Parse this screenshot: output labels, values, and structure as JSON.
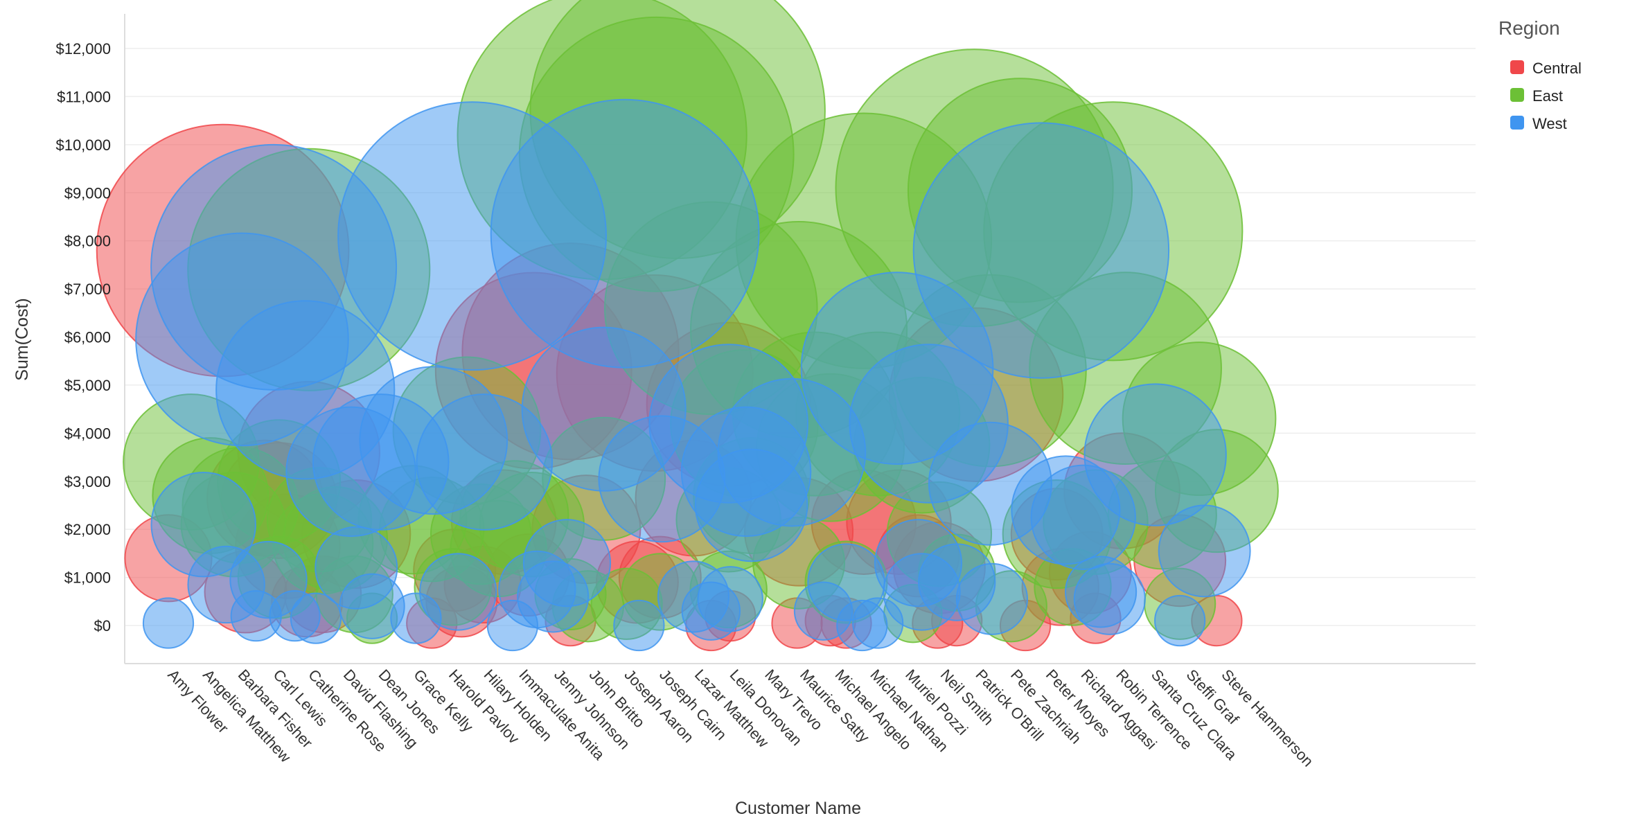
{
  "chart_data": {
    "type": "scatter",
    "subtype": "bubble",
    "xlabel": "Customer Name",
    "ylabel": "Sum(Cost)",
    "ylim": [
      -400,
      12500
    ],
    "y_ticks": [
      0,
      1000,
      2000,
      3000,
      4000,
      5000,
      6000,
      7000,
      8000,
      9000,
      10000,
      11000,
      12000
    ],
    "y_tick_labels": [
      "$0",
      "$1,000",
      "$2,000",
      "$3,000",
      "$4,000",
      "$5,000",
      "$6,000",
      "$7,000",
      "$8,000",
      "$9,000",
      "$10,000",
      "$11,000",
      "$12,000"
    ],
    "grid": true,
    "legend_position": "top-right",
    "legend_title": "Region",
    "categories": [
      "Amy Flower",
      "Angelica Matthew",
      "Barbara Fisher",
      "Carl Lewis",
      "Catherine Rose",
      "David Flashing",
      "Dean Jones",
      "Grace Kelly",
      "Harold Pavlov",
      "Hilary Holden",
      "Immaculate Anita",
      "Jenny Johnson",
      "John Britto",
      "Joseph Aaron",
      "Joseph Cairn",
      "Lazar Matthew",
      "Leila Donovan",
      "Mary Trevo",
      "Maurice Satty",
      "Michael Angelo",
      "Michael Nathan",
      "Muriel Pozzi",
      "Neil Smith",
      "Patrick O'Brill",
      "Pete Zachriah",
      "Peter Moyes",
      "Richard Aggasi",
      "Robin Terrence",
      "Santa Cruz Clara",
      "Steffi Graf",
      "Steve Hammerson"
    ],
    "series": [
      {
        "name": "Central",
        "color": "#f0474a",
        "points": [
          {
            "x": 0.0,
            "y": 1400,
            "size": 450
          },
          {
            "x": 1.55,
            "y": 7800,
            "size": 3800
          },
          {
            "x": 2.2,
            "y": 700,
            "size": 400
          },
          {
            "x": 2.75,
            "y": 2650,
            "size": 800
          },
          {
            "x": 3.15,
            "y": 2600,
            "size": 800
          },
          {
            "x": 3.4,
            "y": 1650,
            "size": 650
          },
          {
            "x": 3.95,
            "y": 500,
            "size": 300
          },
          {
            "x": 4.0,
            "y": 3600,
            "size": 1200
          },
          {
            "x": 4.4,
            "y": 650,
            "size": 350
          },
          {
            "x": 5.35,
            "y": 1900,
            "size": 700
          },
          {
            "x": 7.5,
            "y": 50,
            "size": 150
          },
          {
            "x": 8.15,
            "y": 1150,
            "size": 400
          },
          {
            "x": 8.35,
            "y": 500,
            "size": 300
          },
          {
            "x": 8.95,
            "y": 850,
            "size": 350
          },
          {
            "x": 9.55,
            "y": 2150,
            "size": 650
          },
          {
            "x": 10.25,
            "y": 1050,
            "size": 400
          },
          {
            "x": 10.4,
            "y": 5300,
            "size": 2300
          },
          {
            "x": 11.45,
            "y": 5700,
            "size": 2800
          },
          {
            "x": 11.45,
            "y": 100,
            "size": 150
          },
          {
            "x": 11.9,
            "y": 2000,
            "size": 700
          },
          {
            "x": 13.35,
            "y": 900,
            "size": 400
          },
          {
            "x": 13.85,
            "y": 5250,
            "size": 2300
          },
          {
            "x": 14.0,
            "y": 1000,
            "size": 400
          },
          {
            "x": 14.95,
            "y": 2650,
            "size": 800
          },
          {
            "x": 15.45,
            "y": 0,
            "size": 150
          },
          {
            "x": 15.95,
            "y": 4600,
            "size": 1600
          },
          {
            "x": 16.0,
            "y": 200,
            "size": 150
          },
          {
            "x": 17.95,
            "y": 1950,
            "size": 700
          },
          {
            "x": 17.9,
            "y": 50,
            "size": 150
          },
          {
            "x": 18.85,
            "y": 100,
            "size": 150
          },
          {
            "x": 19.3,
            "y": 50,
            "size": 150
          },
          {
            "x": 19.8,
            "y": 2150,
            "size": 650
          },
          {
            "x": 20.8,
            "y": 2150,
            "size": 650
          },
          {
            "x": 21.35,
            "y": 1450,
            "size": 400
          },
          {
            "x": 21.95,
            "y": 1200,
            "size": 500
          },
          {
            "x": 21.9,
            "y": 50,
            "size": 150
          },
          {
            "x": 22.45,
            "y": 100,
            "size": 150
          },
          {
            "x": 23.0,
            "y": 4800,
            "size": 1800
          },
          {
            "x": 24.4,
            "y": 0,
            "size": 150
          },
          {
            "x": 25.3,
            "y": 1900,
            "size": 500
          },
          {
            "x": 25.4,
            "y": 800,
            "size": 350
          },
          {
            "x": 26.25,
            "y": 1100,
            "size": 400
          },
          {
            "x": 26.4,
            "y": 150,
            "size": 150
          },
          {
            "x": 27.15,
            "y": 2800,
            "size": 800
          },
          {
            "x": 28.8,
            "y": 1350,
            "size": 500
          },
          {
            "x": 29.85,
            "y": 100,
            "size": 150
          }
        ]
      },
      {
        "name": "East",
        "color": "#6cc036",
        "points": [
          {
            "x": 0.65,
            "y": 3400,
            "size": 1100
          },
          {
            "x": 1.2,
            "y": 2700,
            "size": 800
          },
          {
            "x": 1.85,
            "y": 2100,
            "size": 650
          },
          {
            "x": 2.05,
            "y": 2500,
            "size": 800
          },
          {
            "x": 3.15,
            "y": 1000,
            "size": 400
          },
          {
            "x": 3.15,
            "y": 3000,
            "size": 900
          },
          {
            "x": 4.0,
            "y": 7400,
            "size": 3500
          },
          {
            "x": 4.3,
            "y": 2200,
            "size": 650
          },
          {
            "x": 4.4,
            "y": 1700,
            "size": 600
          },
          {
            "x": 4.75,
            "y": 1800,
            "size": 650
          },
          {
            "x": 5.3,
            "y": 650,
            "size": 350
          },
          {
            "x": 5.8,
            "y": 150,
            "size": 150
          },
          {
            "x": 6.95,
            "y": 2200,
            "size": 700
          },
          {
            "x": 7.5,
            "y": 2000,
            "size": 650
          },
          {
            "x": 8.1,
            "y": 800,
            "size": 350
          },
          {
            "x": 8.5,
            "y": 4050,
            "size": 1300
          },
          {
            "x": 8.9,
            "y": 1900,
            "size": 600
          },
          {
            "x": 9.4,
            "y": 1600,
            "size": 550
          },
          {
            "x": 9.85,
            "y": 2300,
            "size": 700
          },
          {
            "x": 10.35,
            "y": 2100,
            "size": 650
          },
          {
            "x": 11.45,
            "y": 650,
            "size": 300
          },
          {
            "x": 11.95,
            "y": 400,
            "size": 300
          },
          {
            "x": 12.35,
            "y": 10200,
            "size": 5000
          },
          {
            "x": 12.4,
            "y": 3050,
            "size": 900
          },
          {
            "x": 13.05,
            "y": 450,
            "size": 300
          },
          {
            "x": 13.9,
            "y": 9800,
            "size": 4500
          },
          {
            "x": 14.0,
            "y": 700,
            "size": 350
          },
          {
            "x": 14.5,
            "y": 10700,
            "size": 5200
          },
          {
            "x": 15.45,
            "y": 6600,
            "size": 2700
          },
          {
            "x": 15.95,
            "y": 750,
            "size": 350
          },
          {
            "x": 15.95,
            "y": 2200,
            "size": 650
          },
          {
            "x": 16.4,
            "y": 4200,
            "size": 1300
          },
          {
            "x": 16.6,
            "y": 2700,
            "size": 800
          },
          {
            "x": 17.95,
            "y": 1300,
            "size": 500
          },
          {
            "x": 17.95,
            "y": 6150,
            "size": 2800
          },
          {
            "x": 18.4,
            "y": 4400,
            "size": 1600
          },
          {
            "x": 18.85,
            "y": 3700,
            "size": 1300
          },
          {
            "x": 19.3,
            "y": 900,
            "size": 400
          },
          {
            "x": 19.8,
            "y": 8000,
            "size": 3900
          },
          {
            "x": 20.2,
            "y": 4400,
            "size": 1600
          },
          {
            "x": 21.2,
            "y": 250,
            "size": 200
          },
          {
            "x": 21.95,
            "y": 1900,
            "size": 650
          },
          {
            "x": 21.45,
            "y": 3750,
            "size": 1100
          },
          {
            "x": 22.45,
            "y": 1100,
            "size": 350
          },
          {
            "x": 22.95,
            "y": 9100,
            "size": 4600
          },
          {
            "x": 23.4,
            "y": 5300,
            "size": 2200
          },
          {
            "x": 24.0,
            "y": 400,
            "size": 300
          },
          {
            "x": 24.25,
            "y": 9050,
            "size": 3000
          },
          {
            "x": 25.3,
            "y": 1900,
            "size": 700
          },
          {
            "x": 25.75,
            "y": 800,
            "size": 350
          },
          {
            "x": 26.4,
            "y": 2150,
            "size": 650
          },
          {
            "x": 26.9,
            "y": 8200,
            "size": 4000
          },
          {
            "x": 27.25,
            "y": 5350,
            "size": 2200
          },
          {
            "x": 28.3,
            "y": 2300,
            "size": 700
          },
          {
            "x": 28.8,
            "y": 450,
            "size": 300
          },
          {
            "x": 29.35,
            "y": 4300,
            "size": 1400
          },
          {
            "x": 29.85,
            "y": 2800,
            "size": 900
          }
        ]
      },
      {
        "name": "West",
        "color": "#3f95f0",
        "points": [
          {
            "x": 0.0,
            "y": 50,
            "size": 150
          },
          {
            "x": 1.0,
            "y": 2100,
            "size": 650
          },
          {
            "x": 1.65,
            "y": 850,
            "size": 350
          },
          {
            "x": 2.1,
            "y": 5950,
            "size": 2700
          },
          {
            "x": 2.5,
            "y": 200,
            "size": 150
          },
          {
            "x": 2.85,
            "y": 950,
            "size": 350
          },
          {
            "x": 3.0,
            "y": 7450,
            "size": 3600
          },
          {
            "x": 3.6,
            "y": 200,
            "size": 150
          },
          {
            "x": 3.9,
            "y": 4900,
            "size": 1900
          },
          {
            "x": 4.2,
            "y": 150,
            "size": 150
          },
          {
            "x": 5.2,
            "y": 3200,
            "size": 1000
          },
          {
            "x": 5.35,
            "y": 1200,
            "size": 400
          },
          {
            "x": 5.8,
            "y": 400,
            "size": 250
          },
          {
            "x": 6.05,
            "y": 3400,
            "size": 1100
          },
          {
            "x": 7.05,
            "y": 150,
            "size": 150
          },
          {
            "x": 7.55,
            "y": 3850,
            "size": 1300
          },
          {
            "x": 8.25,
            "y": 700,
            "size": 350
          },
          {
            "x": 8.65,
            "y": 8100,
            "size": 4300
          },
          {
            "x": 9.0,
            "y": 3400,
            "size": 1100
          },
          {
            "x": 9.8,
            "y": 0,
            "size": 150
          },
          {
            "x": 10.5,
            "y": 750,
            "size": 350
          },
          {
            "x": 10.95,
            "y": 600,
            "size": 300
          },
          {
            "x": 11.35,
            "y": 1300,
            "size": 450
          },
          {
            "x": 12.4,
            "y": 4500,
            "size": 1600
          },
          {
            "x": 13.0,
            "y": 8150,
            "size": 4300
          },
          {
            "x": 13.4,
            "y": 0,
            "size": 150
          },
          {
            "x": 14.05,
            "y": 3050,
            "size": 950
          },
          {
            "x": 14.95,
            "y": 600,
            "size": 300
          },
          {
            "x": 15.45,
            "y": 300,
            "size": 200
          },
          {
            "x": 15.95,
            "y": 4200,
            "size": 1500
          },
          {
            "x": 16.0,
            "y": 550,
            "size": 250
          },
          {
            "x": 16.45,
            "y": 3200,
            "size": 1000
          },
          {
            "x": 16.6,
            "y": 2500,
            "size": 750
          },
          {
            "x": 17.75,
            "y": 3600,
            "size": 1300
          },
          {
            "x": 18.65,
            "y": 300,
            "size": 200
          },
          {
            "x": 19.3,
            "y": 900,
            "size": 350
          },
          {
            "x": 19.75,
            "y": 0,
            "size": 150
          },
          {
            "x": 20.2,
            "y": 50,
            "size": 150
          },
          {
            "x": 20.75,
            "y": 5350,
            "size": 2200
          },
          {
            "x": 21.35,
            "y": 1300,
            "size": 450
          },
          {
            "x": 21.45,
            "y": 700,
            "size": 350
          },
          {
            "x": 21.65,
            "y": 4200,
            "size": 1500
          },
          {
            "x": 22.45,
            "y": 900,
            "size": 350
          },
          {
            "x": 23.4,
            "y": 2950,
            "size": 900
          },
          {
            "x": 23.45,
            "y": 550,
            "size": 300
          },
          {
            "x": 24.85,
            "y": 7800,
            "size": 3900
          },
          {
            "x": 25.55,
            "y": 2400,
            "size": 700
          },
          {
            "x": 26.05,
            "y": 2250,
            "size": 650
          },
          {
            "x": 26.55,
            "y": 700,
            "size": 300
          },
          {
            "x": 26.8,
            "y": 550,
            "size": 300
          },
          {
            "x": 28.1,
            "y": 3550,
            "size": 1200
          },
          {
            "x": 28.8,
            "y": 100,
            "size": 150
          },
          {
            "x": 29.5,
            "y": 1550,
            "size": 500
          }
        ]
      }
    ]
  }
}
